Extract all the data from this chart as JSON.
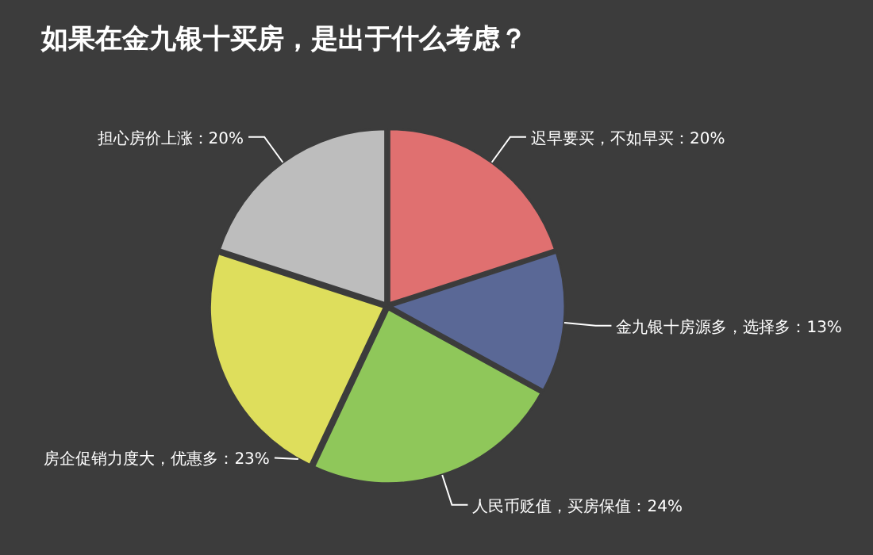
{
  "chart_data": {
    "type": "pie",
    "title": "如果在金九银十买房，是出于什么考虑？",
    "categories": [
      "迟早要买，不如早买",
      "金九银十房源多，选择多",
      "人民币贬值，买房保值",
      "房企促销力度大，优惠多",
      "担心房价上涨"
    ],
    "values": [
      20,
      13,
      24,
      23,
      20
    ],
    "value_labels": [
      "20%",
      "13%",
      "24%",
      "23%",
      "20%"
    ],
    "colors": [
      "#e07070",
      "#5a6896",
      "#8fc75a",
      "#dede5c",
      "#bdbdbd"
    ]
  }
}
